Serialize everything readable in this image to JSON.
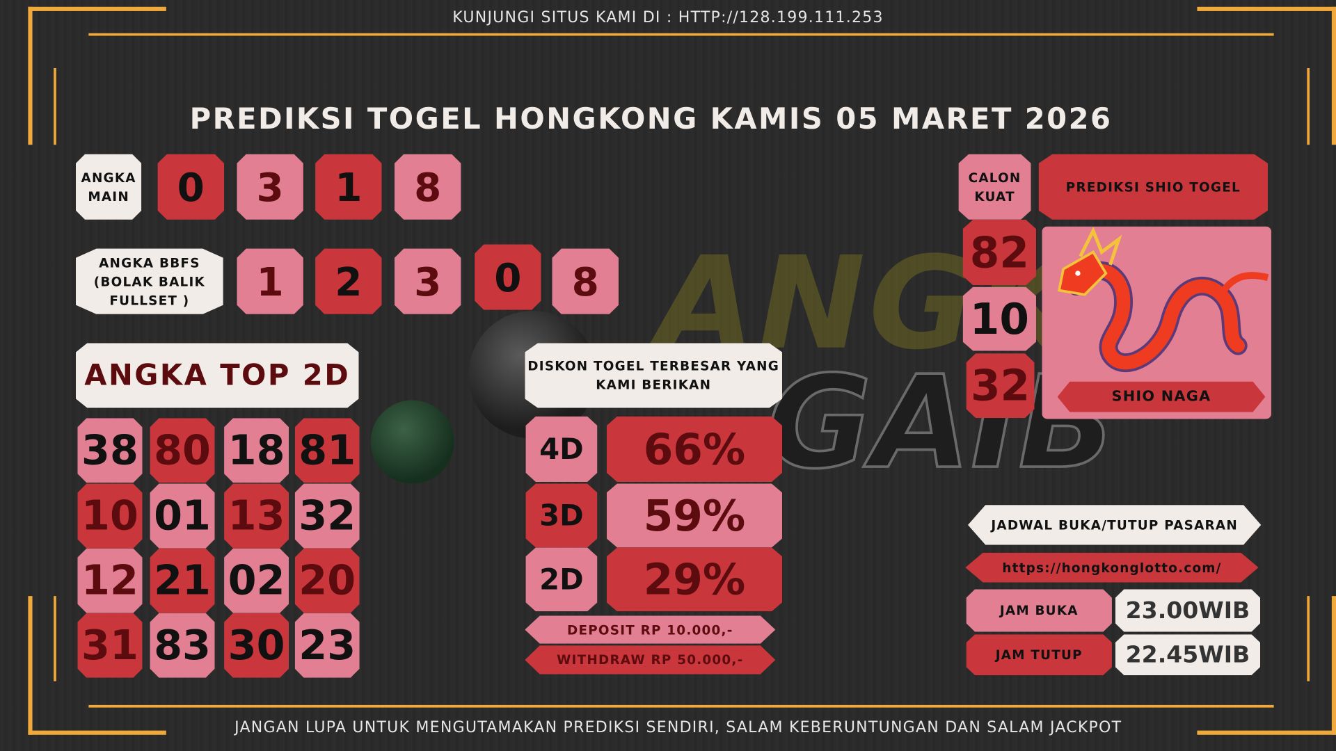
{
  "header": {
    "visit_text": "KUNJUNGI SITUS KAMI DI : HTTP://128.199.111.253"
  },
  "title": "PREDIKSI TOGEL HONGKONG KAMIS 05 MARET 2026",
  "logo_watermark": {
    "line1": "ANGKA",
    "line2": "GAIB"
  },
  "angka_main": {
    "label": "ANGKA MAIN",
    "numbers": [
      "0",
      "3",
      "1",
      "8"
    ]
  },
  "bbfs": {
    "label": "ANGKA BBFS (BOLAK BALIK FULLSET )",
    "numbers": [
      "1",
      "2",
      "3",
      "0",
      "8"
    ]
  },
  "top2d": {
    "label": "ANGKA TOP 2D",
    "rows": [
      [
        "38",
        "80",
        "18",
        "81"
      ],
      [
        "10",
        "01",
        "13",
        "32"
      ],
      [
        "12",
        "21",
        "02",
        "20"
      ],
      [
        "31",
        "83",
        "30",
        "23"
      ]
    ]
  },
  "diskon": {
    "label": "DISKON TOGEL TERBESAR YANG KAMI BERIKAN",
    "rows": [
      {
        "type": "4D",
        "value": "66%"
      },
      {
        "type": "3D",
        "value": "59%"
      },
      {
        "type": "2D",
        "value": "29%"
      }
    ],
    "deposit": "DEPOSIT RP 10.000,-",
    "withdraw": "WITHDRAW RP 50.000,-"
  },
  "calon_kuat": {
    "label": "CALON KUAT",
    "numbers": [
      "82",
      "10",
      "32"
    ]
  },
  "shio": {
    "label": "PREDIKSI SHIO TOGEL",
    "name": "SHIO NAGA",
    "icon": "dragon-image"
  },
  "jadwal": {
    "label": "JADWAL BUKA/TUTUP PASARAN",
    "url": "https://hongkonglotto.com/",
    "buka_label": "JAM BUKA",
    "buka_value": "23.00WIB",
    "tutup_label": "JAM TUTUP",
    "tutup_value": "22.45WIB"
  },
  "footer": {
    "text": "JANGAN LUPA UNTUK MENGUTAMAKAN PREDIKSI SENDIRI, SALAM KEBERUNTUNGAN DAN SALAM JACKPOT"
  },
  "colors": {
    "red": "#c9363b",
    "pink": "#e27f92",
    "cream": "#f1ece7",
    "gold": "#f2a93b",
    "dark_red_text": "#5c0b0e"
  }
}
